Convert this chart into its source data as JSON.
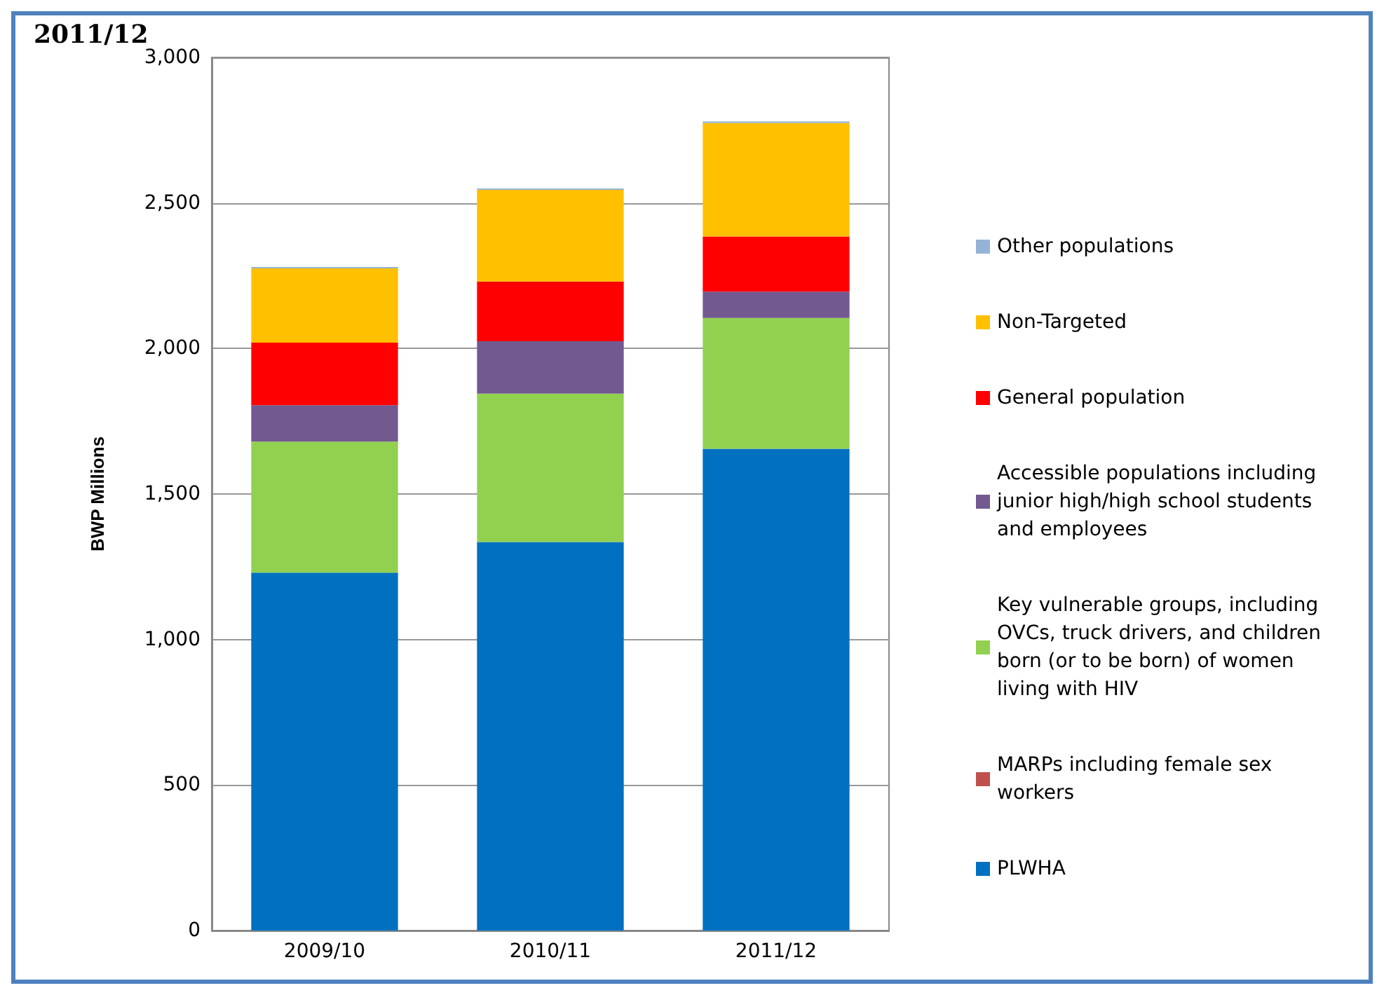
{
  "chart_data": {
    "type": "bar",
    "stacked": true,
    "title": "2011/12",
    "ylabel": "BWP Millions",
    "categories": [
      "2009/10",
      "2010/11",
      "2011/12"
    ],
    "series": [
      {
        "name": "PLWHA",
        "color": "#0070c0",
        "values": [
          1230,
          1335,
          1655
        ]
      },
      {
        "name": "MARPs including female sex workers",
        "color": "#c0504d",
        "values": [
          0,
          0,
          0
        ]
      },
      {
        "name": "Key vulnerable groups, including OVCs, truck drivers, and children born (or to be born) of women living with HIV",
        "color": "#92d050",
        "values": [
          450,
          510,
          450
        ]
      },
      {
        "name": "Accessible populations including junior high/high school students and employees",
        "color": "#725990",
        "values": [
          125,
          180,
          90
        ]
      },
      {
        "name": "General population",
        "color": "#ff0000",
        "values": [
          215,
          205,
          190
        ]
      },
      {
        "name": "Non-Targeted",
        "color": "#ffc000",
        "values": [
          255,
          315,
          390
        ]
      },
      {
        "name": "Other populations",
        "color": "#95b3d7",
        "values": [
          5,
          5,
          5
        ]
      }
    ],
    "ylim": [
      0,
      3000
    ],
    "yticks": [
      0,
      500,
      {
        "value": 1000,
        "label": "1,000"
      },
      {
        "value": 1500,
        "label": "1,500"
      },
      {
        "value": 2000,
        "label": "2,000"
      },
      {
        "value": 2500,
        "label": "2,500"
      },
      {
        "value": 3000,
        "label": "3,000"
      }
    ],
    "grid": "y",
    "legend": "right"
  }
}
